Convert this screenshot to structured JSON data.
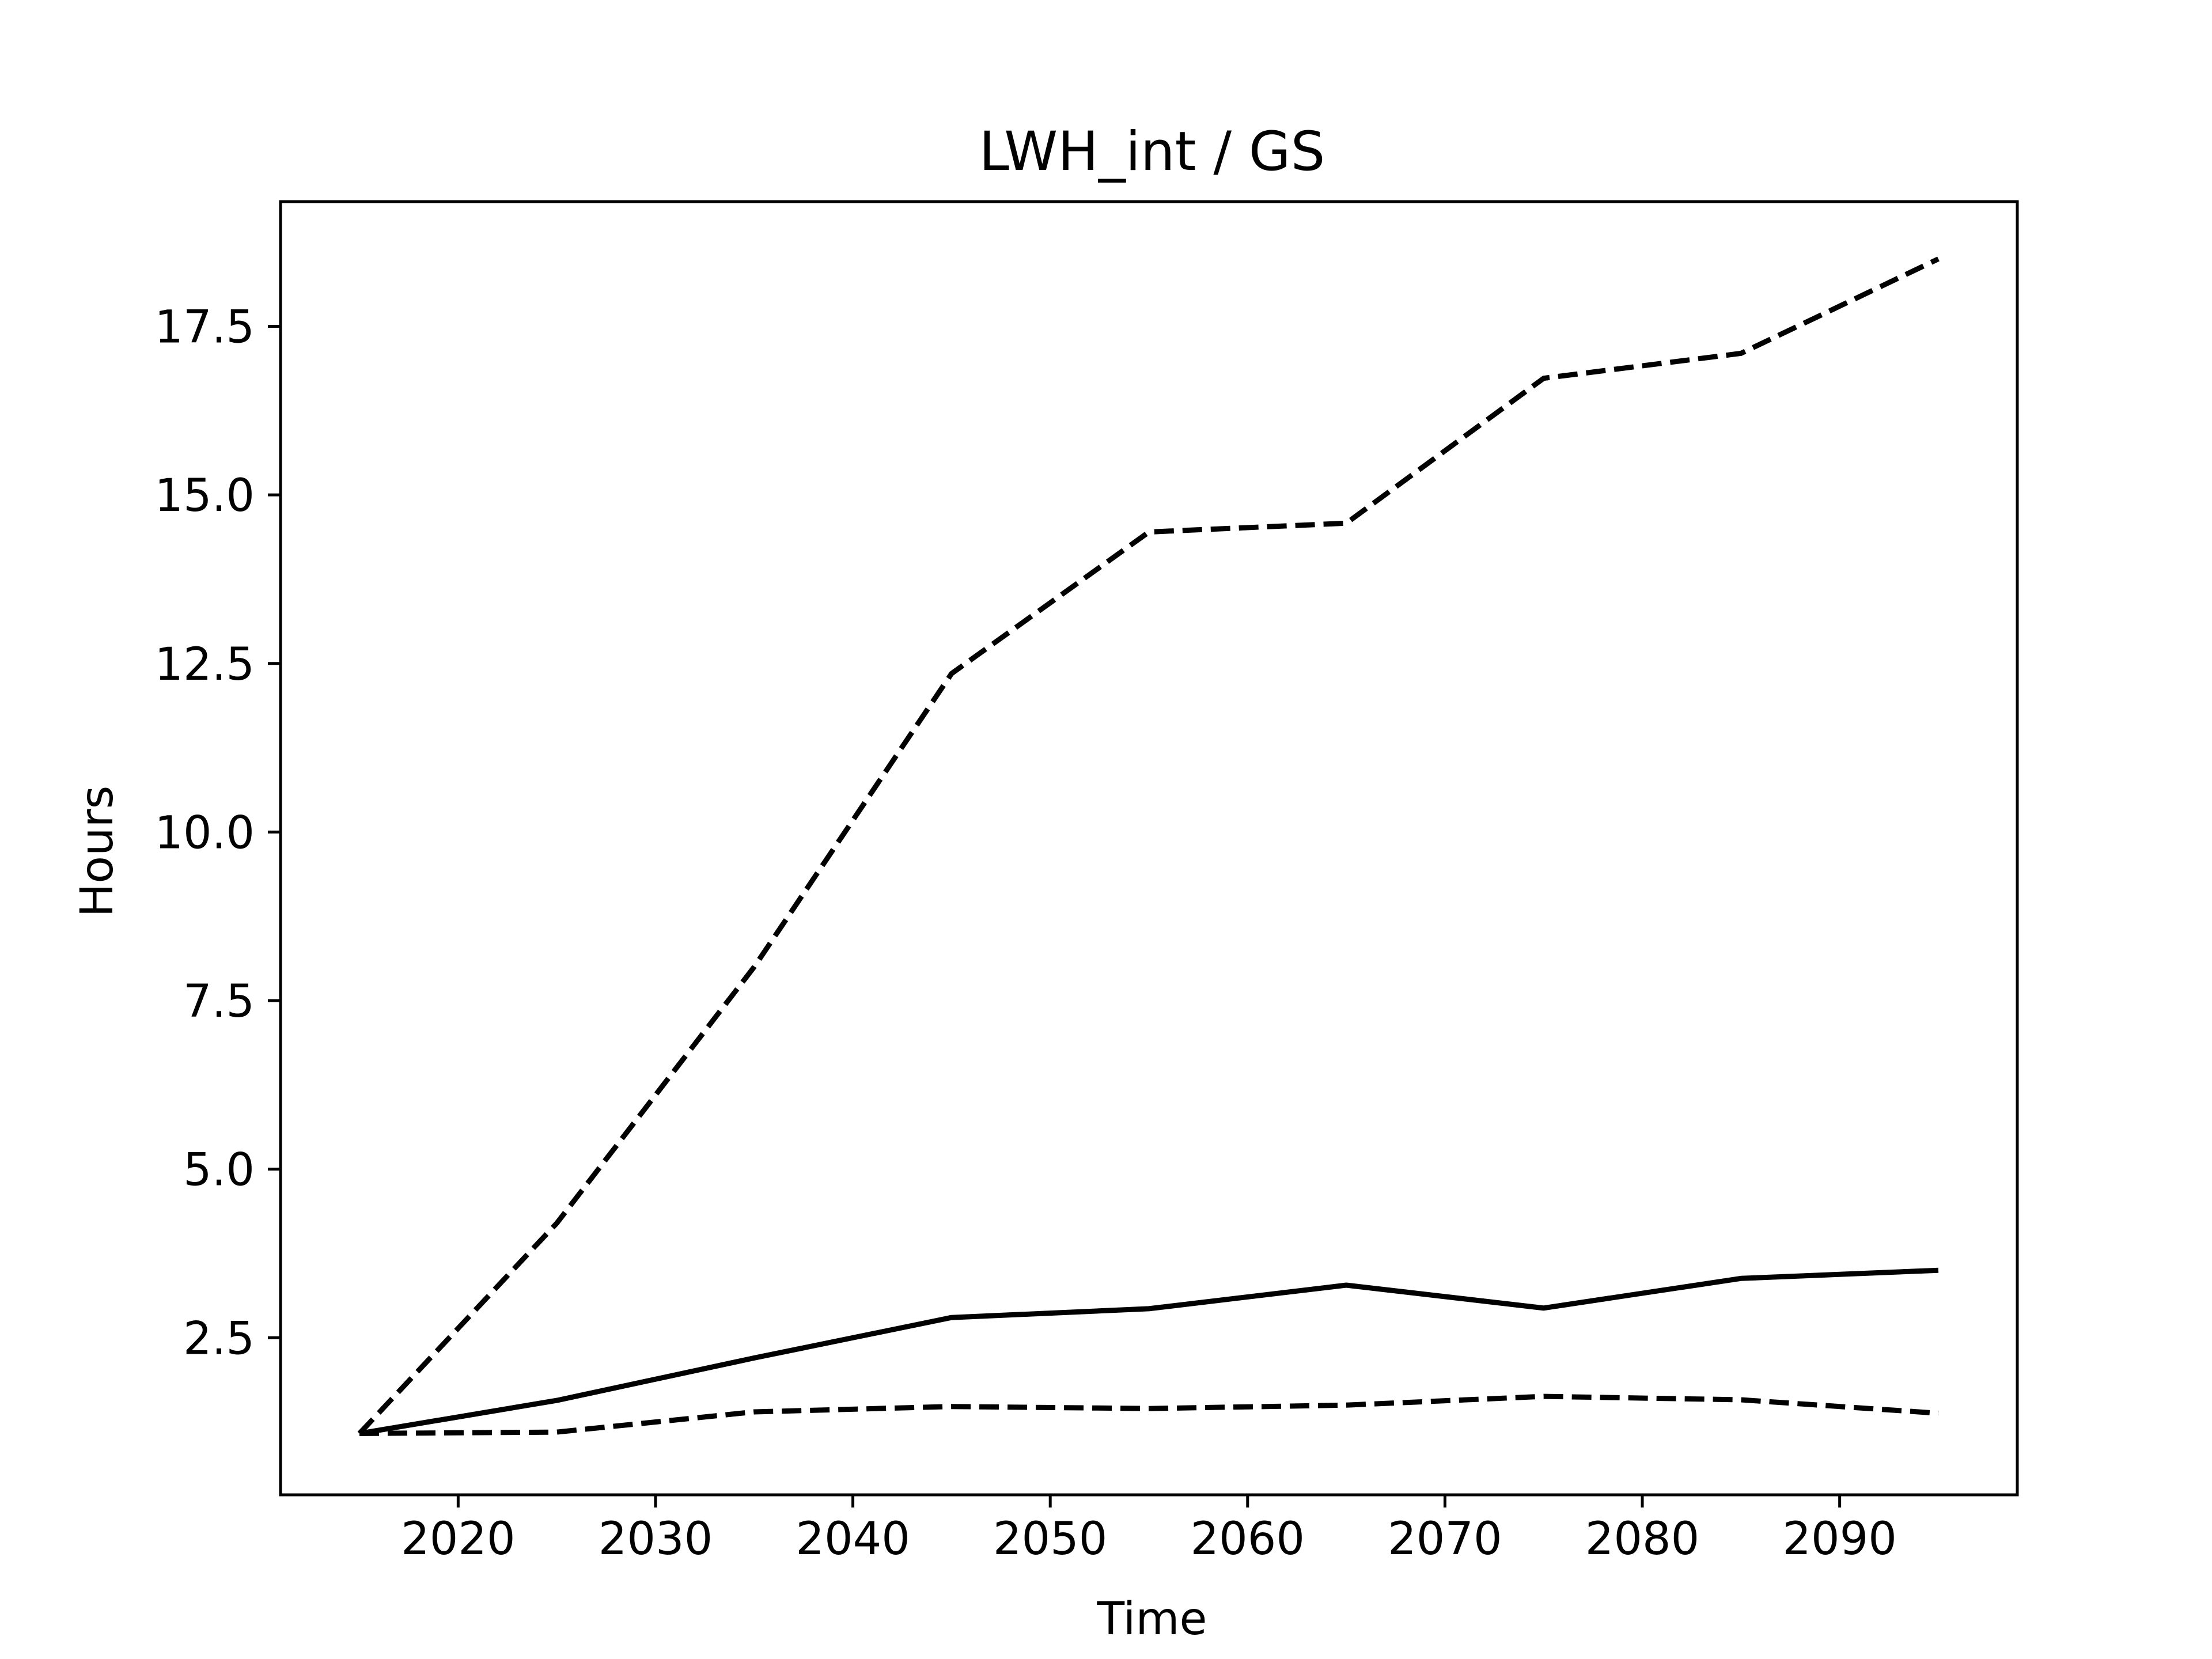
{
  "chart_data": {
    "type": "line",
    "title": "LWH_int / GS",
    "xlabel": "Time",
    "ylabel": "Hours",
    "xlim": [
      2011,
      2099
    ],
    "ylim": [
      0.17,
      19.35
    ],
    "x_ticks": [
      2020,
      2030,
      2040,
      2050,
      2060,
      2070,
      2080,
      2090
    ],
    "y_ticks": [
      2.5,
      5.0,
      7.5,
      10.0,
      12.5,
      15.0,
      17.5
    ],
    "y_tick_labels": [
      "2.5",
      "5.0",
      "7.5",
      "10.0",
      "12.5",
      "15.0",
      "17.5"
    ],
    "grid": false,
    "legend": "none",
    "colors": {
      "line": "#000000",
      "background": "#ffffff"
    },
    "x": [
      2015,
      2025,
      2035,
      2045,
      2055,
      2065,
      2075,
      2085,
      2095
    ],
    "series": [
      {
        "style": "dashed",
        "values": [
          1.08,
          4.2,
          8.0,
          12.35,
          14.45,
          14.58,
          16.73,
          17.1,
          18.5
        ]
      },
      {
        "style": "solid",
        "values": [
          1.08,
          1.57,
          2.2,
          2.8,
          2.93,
          3.28,
          2.94,
          3.38,
          3.5
        ]
      },
      {
        "style": "dashed",
        "values": [
          1.08,
          1.1,
          1.4,
          1.48,
          1.45,
          1.5,
          1.63,
          1.58,
          1.38
        ]
      }
    ]
  }
}
